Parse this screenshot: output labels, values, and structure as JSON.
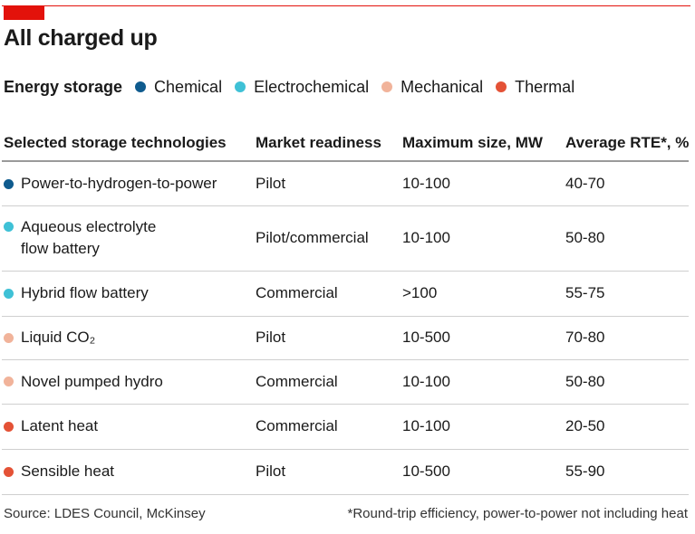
{
  "title": "All charged up",
  "legend": {
    "title": "Energy storage",
    "items": [
      {
        "label": "Chemical",
        "color": "#0f5b8e"
      },
      {
        "label": "Electrochemical",
        "color": "#3fc1d6"
      },
      {
        "label": "Mechanical",
        "color": "#f1b39a"
      },
      {
        "label": "Thermal",
        "color": "#e45236"
      }
    ]
  },
  "chart_data": {
    "type": "table",
    "title": "All charged up",
    "columns": [
      "Selected storage technologies",
      "Market readiness",
      "Maximum size, MW",
      "Average RTE*, %"
    ],
    "rows": [
      {
        "technology": "Power-to-hydrogen-to-power",
        "category": "Chemical",
        "readiness": "Pilot",
        "max_size": "10-100",
        "rte": "40-70"
      },
      {
        "technology": "Aqueous electrolyte flow battery",
        "category": "Electrochemical",
        "readiness": "Pilot/commercial",
        "max_size": "10-100",
        "rte": "50-80"
      },
      {
        "technology": "Hybrid flow battery",
        "category": "Electrochemical",
        "readiness": "Commercial",
        "max_size": ">100",
        "rte": "55-75"
      },
      {
        "technology": "Liquid CO₂",
        "category": "Mechanical",
        "readiness": "Pilot",
        "max_size": "10-500",
        "rte": "70-80"
      },
      {
        "technology": "Novel pumped hydro",
        "category": "Mechanical",
        "readiness": "Commercial",
        "max_size": "10-100",
        "rte": "50-80"
      },
      {
        "technology": "Latent heat",
        "category": "Thermal",
        "readiness": "Commercial",
        "max_size": "10-100",
        "rte": "20-50"
      },
      {
        "technology": "Sensible heat",
        "category": "Thermal",
        "readiness": "Pilot",
        "max_size": "10-500",
        "rte": "55-90"
      }
    ]
  },
  "table": {
    "rows": [
      {
        "tech_lines": [
          "Power-to-hydrogen-to-power"
        ],
        "color": "#0f5b8e"
      },
      {
        "tech_lines": [
          "Aqueous electrolyte",
          "flow battery"
        ],
        "color": "#3fc1d6"
      },
      {
        "tech_lines": [
          "Hybrid flow battery"
        ],
        "color": "#3fc1d6"
      },
      {
        "tech_lines": [
          "Liquid CO₂"
        ],
        "color": "#f1b39a"
      },
      {
        "tech_lines": [
          "Novel pumped hydro"
        ],
        "color": "#f1b39a"
      },
      {
        "tech_lines": [
          "Latent heat"
        ],
        "color": "#e45236"
      },
      {
        "tech_lines": [
          "Sensible heat"
        ],
        "color": "#e45236"
      }
    ]
  },
  "footer": {
    "source": "Source: LDES Council, McKinsey",
    "note": "*Round-trip efficiency, power-to-power not including heat"
  }
}
